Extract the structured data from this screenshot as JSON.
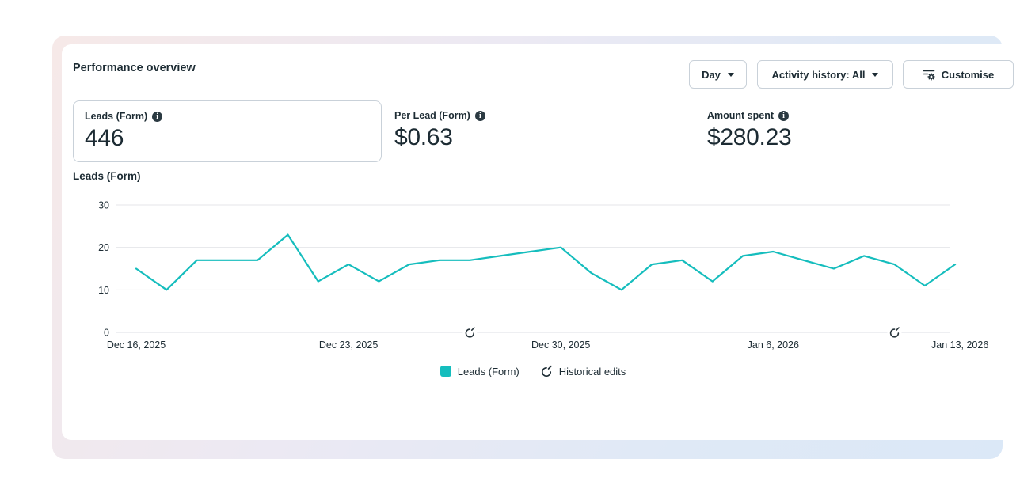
{
  "panel": {
    "title": "Performance overview",
    "controls": {
      "day_button": "Day",
      "activity_button": "Activity history: All",
      "customise_button": "Customise"
    },
    "metrics": [
      {
        "label": "Leads (Form)",
        "value": "446",
        "selected": true
      },
      {
        "label": "Per Lead (Form)",
        "value": "$0.63",
        "selected": false
      },
      {
        "label": "Amount spent",
        "value": "$280.23",
        "selected": false
      }
    ],
    "chart_section_title": "Leads (Form)"
  },
  "chart_data": {
    "type": "line",
    "title": "Leads (Form)",
    "x": [
      "Dec 16, 2025",
      "Dec 17, 2025",
      "Dec 18, 2025",
      "Dec 19, 2025",
      "Dec 20, 2025",
      "Dec 21, 2025",
      "Dec 22, 2025",
      "Dec 23, 2025",
      "Dec 24, 2025",
      "Dec 25, 2025",
      "Dec 26, 2025",
      "Dec 27, 2025",
      "Dec 28, 2025",
      "Dec 29, 2025",
      "Dec 30, 2025",
      "Dec 31, 2025",
      "Jan 1, 2026",
      "Jan 2, 2026",
      "Jan 3, 2026",
      "Jan 4, 2026",
      "Jan 5, 2026",
      "Jan 6, 2026",
      "Jan 7, 2026",
      "Jan 8, 2026",
      "Jan 9, 2026",
      "Jan 10, 2026",
      "Jan 11, 2026",
      "Jan 12, 2026"
    ],
    "series": [
      {
        "name": "Leads (Form)",
        "color": "#15bdbd",
        "values": [
          15,
          10,
          17,
          17,
          17,
          23,
          12,
          16,
          12,
          16,
          17,
          17,
          18,
          19,
          20,
          14,
          10,
          16,
          17,
          12,
          18,
          19,
          17,
          15,
          18,
          16,
          11,
          16
        ]
      }
    ],
    "ylim": [
      0,
      30
    ],
    "y_ticks": [
      0,
      10,
      20,
      30
    ],
    "x_tick_labels": [
      "Dec 16, 2025",
      "Dec 23, 2025",
      "Dec 30, 2025",
      "Jan 6, 2026",
      "Jan 13, 2026"
    ],
    "x_tick_indices": [
      0,
      7,
      14,
      21,
      28
    ],
    "grid": "horizontal",
    "legend_position": "bottom-center",
    "legend": [
      {
        "label": "Leads (Form)",
        "marker": "swatch"
      },
      {
        "label": "Historical edits",
        "marker": "historical-edits-icon"
      }
    ],
    "historical_edit_markers": [
      "Dec 27, 2025",
      "Jan 10, 2026"
    ]
  },
  "colors": {
    "accent_teal": "#15bdbd",
    "text_dark": "#1c2b33",
    "grid_line": "#e4e6ea",
    "border_gray": "#c9d1d9"
  }
}
